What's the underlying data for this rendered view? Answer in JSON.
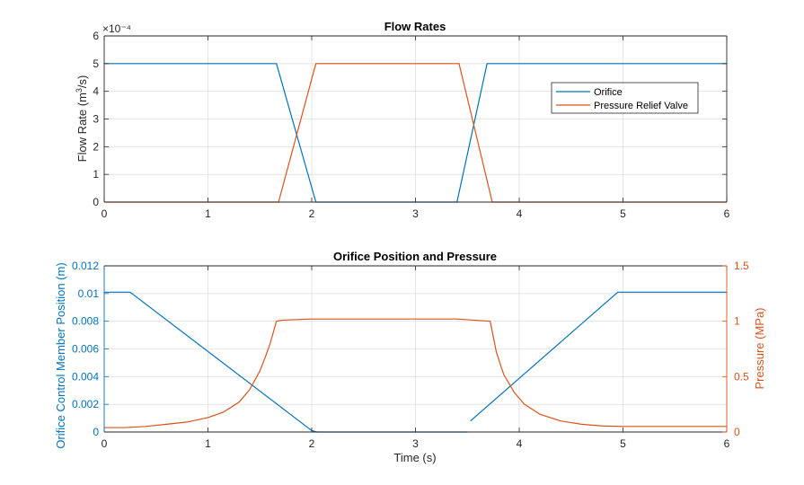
{
  "colors": {
    "series1": "#0072bd",
    "series2": "#d95319",
    "axis": "#262626",
    "grid": "#dfdfdf"
  },
  "chart_data": [
    {
      "type": "line",
      "title": "Flow Rates",
      "xlabel": "",
      "ylabel": "Flow  Rate  (m³/s)",
      "y_exponent_label": "×10⁻⁴",
      "xlim": [
        0,
        6
      ],
      "ylim": [
        0,
        6
      ],
      "xticks": [
        "0",
        "1",
        "2",
        "3",
        "4",
        "5",
        "6"
      ],
      "yticks": [
        "0",
        "1",
        "2",
        "3",
        "4",
        "5",
        "6"
      ],
      "y_scale_note": "values in units of 1e-4 m³/s",
      "grid": true,
      "legend_position": "right",
      "series": [
        {
          "name": "Orifice",
          "x": [
            0,
            1.66,
            2.04,
            3.4,
            3.69,
            6
          ],
          "y": [
            5,
            5,
            0,
            0,
            5,
            5
          ]
        },
        {
          "name": "Pressure Relief Valve",
          "x": [
            0,
            1.68,
            2.04,
            3.42,
            3.74,
            6
          ],
          "y": [
            0,
            0,
            5,
            5,
            0,
            0
          ]
        }
      ]
    },
    {
      "type": "line",
      "title": "Orifice Position and Pressure",
      "xlabel": "Time (s)",
      "ylabel": "Orifice Control Member Position (m)",
      "y2label": "Pressure (MPa)",
      "xlim": [
        0,
        6
      ],
      "ylim": [
        0,
        0.012
      ],
      "y2lim": [
        0,
        1.5
      ],
      "xticks": [
        "0",
        "1",
        "2",
        "3",
        "4",
        "5",
        "6"
      ],
      "yticks": [
        "0",
        "0.002",
        "0.004",
        "0.006",
        "0.008",
        "0.01",
        "0.012"
      ],
      "y2ticks": [
        "0",
        "0.5",
        "1",
        "1.5"
      ],
      "grid": true,
      "series": [
        {
          "axis": "left",
          "x": [
            0,
            0.25,
            2.0,
            2.05,
            3.5
          ],
          "y": [
            0.0101,
            0.0101,
            0.0001,
            0,
            0
          ],
          "segment2_x": [
            3.53,
            4.95,
            6
          ],
          "segment2_y": [
            0.0008,
            0.0101,
            0.0101
          ]
        },
        {
          "axis": "right",
          "x": [
            0,
            0.2,
            0.4,
            0.6,
            0.8,
            1.0,
            1.15,
            1.3,
            1.4,
            1.5,
            1.55,
            1.6,
            1.66,
            1.72,
            2.0,
            2.5,
            3.0,
            3.4,
            3.72,
            3.78,
            3.85,
            3.95,
            4.05,
            4.2,
            4.4,
            4.6,
            4.8,
            5.0,
            5.5,
            6.0
          ],
          "y": [
            0.04,
            0.04,
            0.05,
            0.07,
            0.09,
            0.13,
            0.18,
            0.27,
            0.38,
            0.55,
            0.67,
            0.8,
            1.0,
            1.01,
            1.02,
            1.02,
            1.02,
            1.02,
            1.0,
            0.72,
            0.52,
            0.36,
            0.25,
            0.16,
            0.1,
            0.07,
            0.055,
            0.05,
            0.05,
            0.05
          ]
        }
      ]
    }
  ]
}
